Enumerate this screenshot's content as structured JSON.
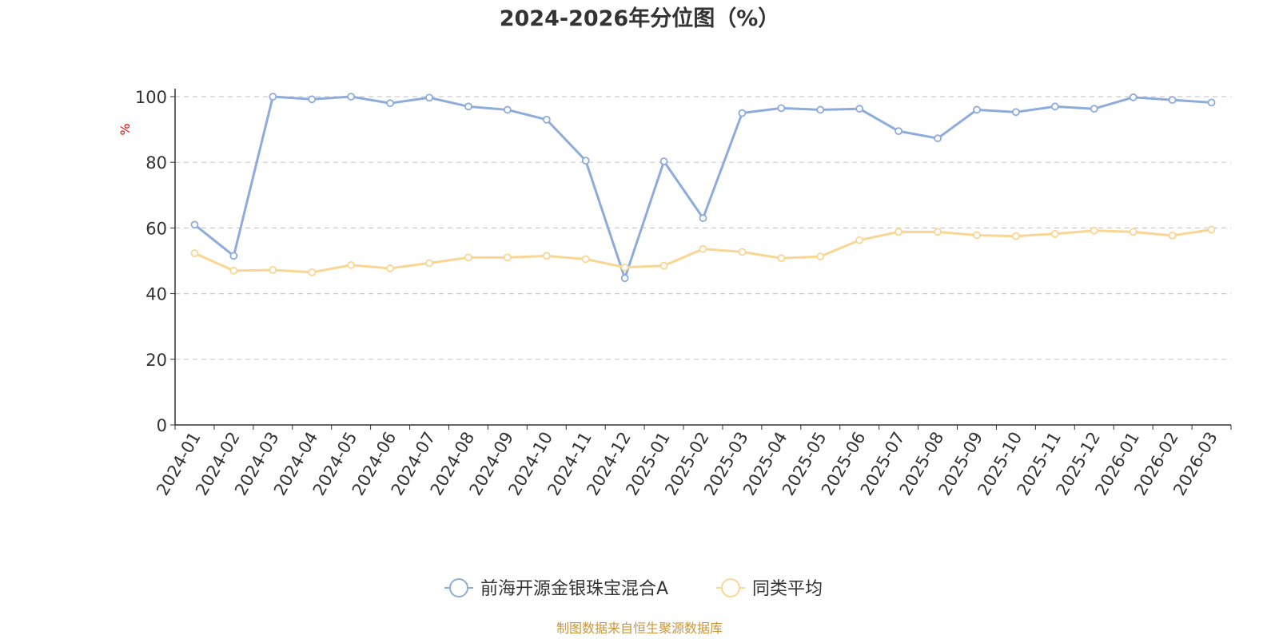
{
  "chart_data": {
    "type": "line",
    "title": "2024-2026年分位图（%）",
    "ylabel": "%",
    "ylim": [
      0,
      100
    ],
    "yticks": [
      0,
      20,
      40,
      60,
      80,
      100
    ],
    "grid": true,
    "legend_position": "bottom",
    "categories": [
      "2024-01",
      "2024-02",
      "2024-03",
      "2024-04",
      "2024-05",
      "2024-06",
      "2024-07",
      "2024-08",
      "2024-09",
      "2024-10",
      "2024-11",
      "2024-12",
      "2025-01",
      "2025-02",
      "2025-03",
      "2025-04",
      "2025-05",
      "2025-06",
      "2025-07",
      "2025-08",
      "2025-09",
      "2025-10",
      "2025-11",
      "2025-12",
      "2026-01",
      "2026-02",
      "2026-03"
    ],
    "series": [
      {
        "name": "前海开源金银珠宝混合A",
        "color": "#8eacdb",
        "values": [
          61,
          51.5,
          100,
          99.2,
          100,
          98,
          99.7,
          97,
          96,
          93,
          80.5,
          44.7,
          80.3,
          63,
          95,
          96.5,
          96,
          96.3,
          89.5,
          87.3,
          96,
          95.3,
          97,
          96.3,
          99.8,
          99,
          98.2
        ]
      },
      {
        "name": "同类平均",
        "color": "#fad695",
        "values": [
          52.3,
          47,
          47.2,
          46.5,
          48.7,
          47.7,
          49.3,
          51,
          51,
          51.5,
          50.5,
          48,
          48.5,
          53.6,
          52.7,
          50.8,
          51.3,
          56.3,
          58.8,
          58.8,
          57.8,
          57.5,
          58.2,
          59.2,
          58.8,
          57.7,
          59.5
        ]
      }
    ]
  },
  "footer": {
    "source_text": "制图数据来自恒生聚源数据库"
  }
}
